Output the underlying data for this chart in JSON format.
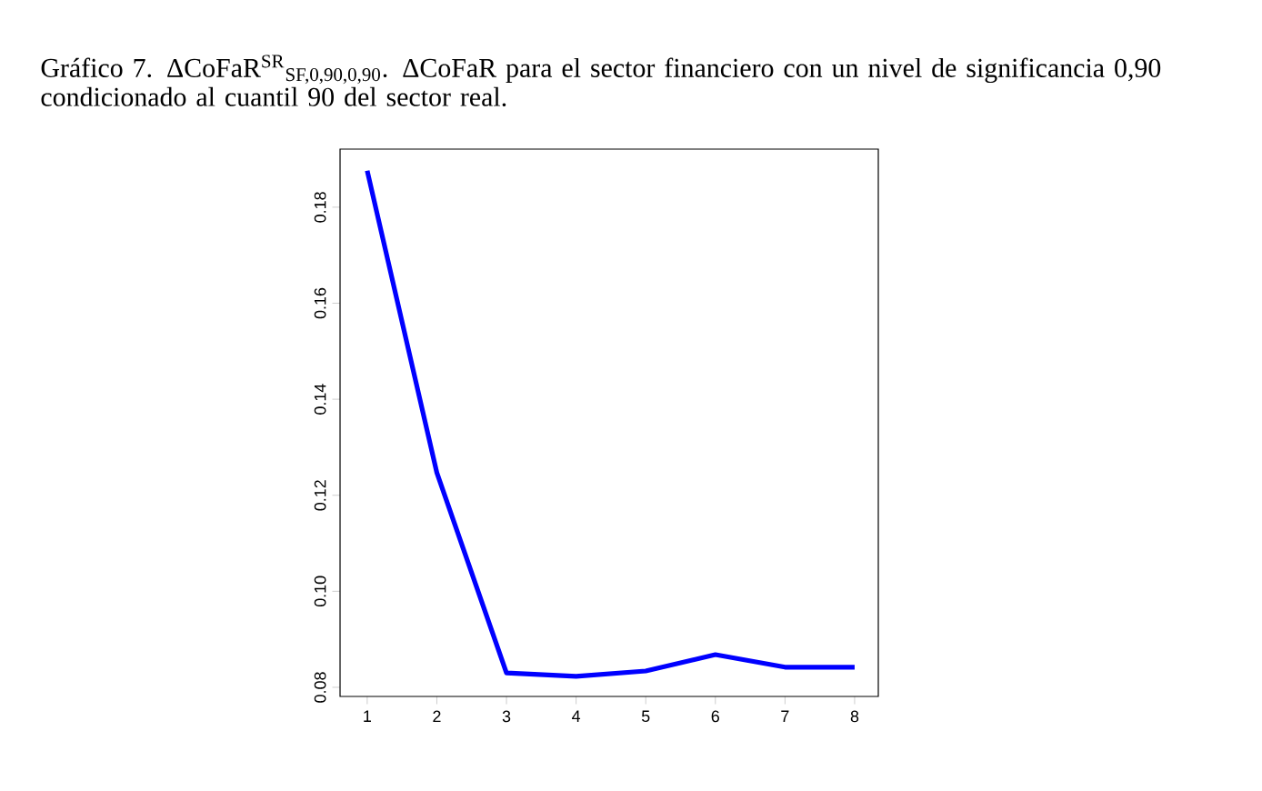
{
  "chart_data": {
    "type": "line",
    "title": "Gráfico 7. ΔCoFaR$^{SR}$$_{SF,0,90,0,90}$. ΔCoFaR para el sector financiero con un nivel de significancia 0,90 condicionado al cuantil 90 del sector real.",
    "x": [
      1,
      2,
      3,
      4,
      5,
      6,
      7,
      8
    ],
    "series": [
      {
        "color": "#0000ff",
        "values": [
          0.1876,
          0.1247,
          0.083,
          0.0823,
          0.0834,
          0.0868,
          0.0842,
          0.0842
        ]
      }
    ],
    "xlim": [
      0.61,
      8.34
    ],
    "ylim": [
      0.0781,
      0.1921
    ],
    "xticks": [
      1,
      2,
      3,
      4,
      5,
      6,
      7,
      8
    ],
    "yticks": [
      {
        "value": 0.08,
        "label": "0.08"
      },
      {
        "value": 0.1,
        "label": "0.10"
      },
      {
        "value": 0.12,
        "label": "0.12"
      },
      {
        "value": 0.14,
        "label": "0.14"
      },
      {
        "value": 0.16,
        "label": "0.16"
      },
      {
        "value": 0.18,
        "label": "0.18"
      }
    ],
    "grid": false
  }
}
